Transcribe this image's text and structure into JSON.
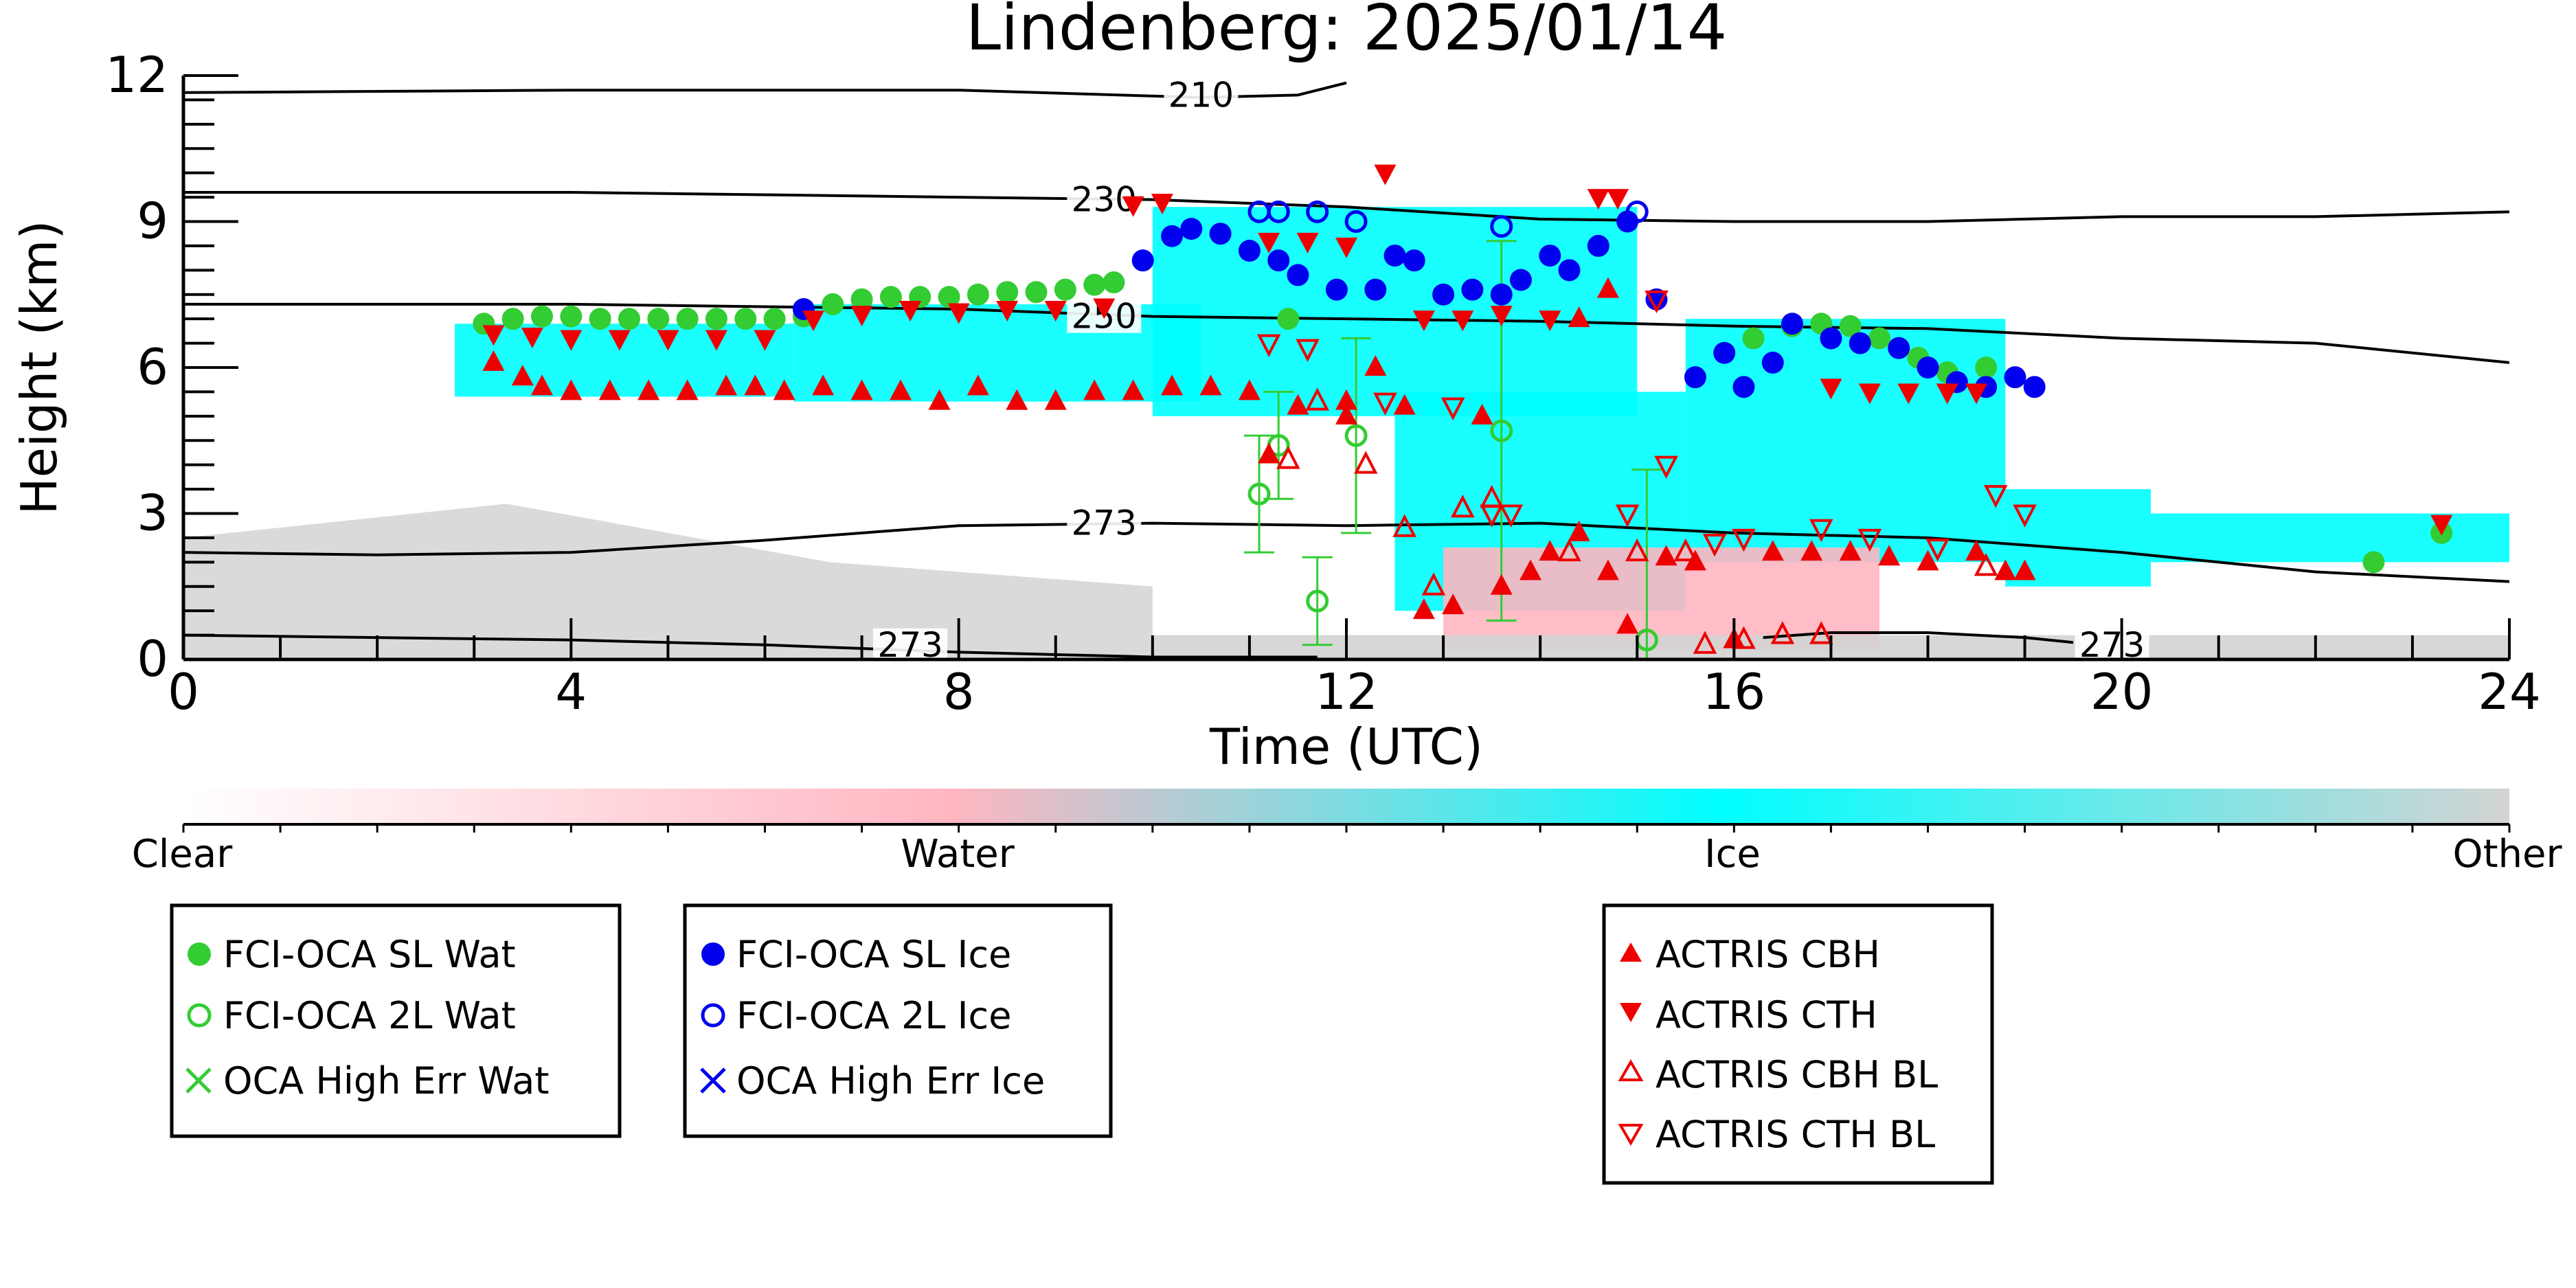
{
  "chart_data": {
    "type": "scatter",
    "title": "Lindenberg: 2025/01/14",
    "xlabel": "Time (UTC)",
    "ylabel": "Height (km)",
    "xlim": [
      0,
      24
    ],
    "ylim": [
      0,
      12
    ],
    "x_ticks": [
      0,
      4,
      8,
      12,
      16,
      20,
      24
    ],
    "y_ticks": [
      0,
      3,
      6,
      9,
      12
    ],
    "x_tick_labels": [
      "0",
      "4",
      "8",
      "12",
      "16",
      "20",
      "24"
    ],
    "y_tick_labels": [
      "0",
      "3",
      "6",
      "9",
      "12"
    ],
    "grid": false,
    "colorbar": {
      "labels": [
        "Clear",
        "Water",
        "Ice",
        "Other"
      ],
      "colors": [
        "#ffffff",
        "#ffb6c1",
        "#00ffff",
        "#d3d3d3"
      ]
    },
    "background_classification": [
      {
        "class": "Other",
        "x0": 0,
        "x1": 10,
        "ytop": [
          2.5,
          3.2,
          2.0,
          1.5
        ]
      },
      {
        "class": "Ice",
        "x0": 2.8,
        "x1": 6.3,
        "ymin": 5.4,
        "ymax": 6.9
      },
      {
        "class": "Ice",
        "x0": 6.3,
        "x1": 10.5,
        "ymin": 5.3,
        "ymax": 7.3
      },
      {
        "class": "Ice",
        "x0": 10,
        "x1": 15,
        "ymin": 5.0,
        "ymax": 9.3
      },
      {
        "class": "Ice",
        "x0": 12.5,
        "x1": 15.5,
        "ymin": 1.0,
        "ymax": 5.5
      },
      {
        "class": "Ice",
        "x0": 15.5,
        "x1": 18.8,
        "ymin": 2.0,
        "ymax": 7.0
      },
      {
        "class": "Ice",
        "x0": 18.8,
        "x1": 20.3,
        "ymin": 1.5,
        "ymax": 3.5
      },
      {
        "class": "Ice",
        "x0": 20.3,
        "x1": 24,
        "ymin": 2.0,
        "ymax": 3.0
      },
      {
        "class": "Water",
        "x0": 13,
        "x1": 17.5,
        "ymin": 0.2,
        "ymax": 2.3
      },
      {
        "class": "Other",
        "x0": 10,
        "x1": 24,
        "ymin": 0,
        "ymax": 0.5
      }
    ],
    "contours": [
      {
        "label": "210",
        "label_x": 10.5,
        "label_y": 11.6,
        "x": [
          0,
          4,
          8,
          10.5,
          11.5,
          12.0
        ],
        "y": [
          11.65,
          11.7,
          11.7,
          11.55,
          11.6,
          11.85
        ]
      },
      {
        "label": "230",
        "label_x": 9.5,
        "label_y": 9.45,
        "x": [
          0,
          4,
          8,
          10,
          12,
          14,
          16,
          18,
          20,
          22,
          24
        ],
        "y": [
          9.6,
          9.6,
          9.5,
          9.45,
          9.3,
          9.05,
          9.0,
          9.0,
          9.1,
          9.1,
          9.2
        ]
      },
      {
        "label": "250",
        "label_x": 9.5,
        "label_y": 7.05,
        "x": [
          0,
          4,
          8,
          10,
          12,
          14,
          16,
          18,
          20,
          22,
          24
        ],
        "y": [
          7.3,
          7.3,
          7.2,
          7.05,
          7.0,
          6.95,
          6.85,
          6.8,
          6.6,
          6.5,
          6.1
        ]
      },
      {
        "label": "273",
        "label_x": 9.5,
        "label_y": 2.8,
        "x": [
          0,
          2,
          4,
          6,
          8,
          10,
          12,
          14,
          16,
          18,
          20,
          22,
          24
        ],
        "y": [
          2.2,
          2.15,
          2.2,
          2.45,
          2.75,
          2.8,
          2.75,
          2.8,
          2.6,
          2.5,
          2.2,
          1.8,
          1.6
        ]
      },
      {
        "label": "273",
        "label_x": 7.5,
        "label_y": 0.3,
        "x": [
          0,
          2,
          4,
          6,
          8,
          10,
          11.7
        ],
        "y": [
          0.5,
          0.45,
          0.4,
          0.3,
          0.15,
          0.05,
          0.05
        ]
      },
      {
        "label": "273",
        "label_x": 19.9,
        "label_y": 0.3,
        "x": [
          16.3,
          17,
          18,
          19,
          19.5
        ],
        "y": [
          0.45,
          0.55,
          0.55,
          0.45,
          0.35
        ]
      }
    ],
    "series": [
      {
        "name": "FCI-OCA SL Wat",
        "color": "#33cc33",
        "marker": "filled-circle",
        "points": [
          [
            3.1,
            6.9
          ],
          [
            3.4,
            7.0
          ],
          [
            3.7,
            7.05
          ],
          [
            4.0,
            7.05
          ],
          [
            4.3,
            7.0
          ],
          [
            4.6,
            7.0
          ],
          [
            4.9,
            7.0
          ],
          [
            5.2,
            7.0
          ],
          [
            5.5,
            7.0
          ],
          [
            5.8,
            7.0
          ],
          [
            6.1,
            7.0
          ],
          [
            6.4,
            7.05
          ],
          [
            6.7,
            7.3
          ],
          [
            7.0,
            7.4
          ],
          [
            7.3,
            7.45
          ],
          [
            7.6,
            7.45
          ],
          [
            7.9,
            7.45
          ],
          [
            8.2,
            7.5
          ],
          [
            8.5,
            7.55
          ],
          [
            8.8,
            7.55
          ],
          [
            9.1,
            7.6
          ],
          [
            9.4,
            7.7
          ],
          [
            9.6,
            7.75
          ],
          [
            11.4,
            7.0
          ],
          [
            16.2,
            6.6
          ],
          [
            16.6,
            6.85
          ],
          [
            16.9,
            6.9
          ],
          [
            17.2,
            6.85
          ],
          [
            17.5,
            6.6
          ],
          [
            17.9,
            6.2
          ],
          [
            18.2,
            5.9
          ],
          [
            18.6,
            6.0
          ],
          [
            22.6,
            2.0
          ],
          [
            23.3,
            2.6
          ]
        ]
      },
      {
        "name": "FCI-OCA 2L Wat",
        "color": "#33cc33",
        "marker": "open-circle",
        "points": [
          [
            11.1,
            3.4
          ],
          [
            11.3,
            4.4
          ],
          [
            11.7,
            1.2
          ],
          [
            12.1,
            4.6
          ],
          [
            13.6,
            4.7
          ],
          [
            15.1,
            0.4
          ]
        ],
        "errors": [
          [
            11.1,
            2.2,
            4.6
          ],
          [
            11.3,
            3.3,
            5.5
          ],
          [
            11.7,
            0.3,
            2.1
          ],
          [
            12.1,
            2.6,
            6.6
          ],
          [
            13.6,
            0.8,
            8.6
          ],
          [
            15.1,
            0,
            3.9
          ]
        ]
      },
      {
        "name": "OCA High Err Wat",
        "color": "#33cc33",
        "marker": "x",
        "points": []
      },
      {
        "name": "FCI-OCA SL Ice",
        "color": "#0000ee",
        "marker": "filled-circle",
        "points": [
          [
            6.4,
            7.2
          ],
          [
            9.9,
            8.2
          ],
          [
            10.2,
            8.7
          ],
          [
            10.4,
            8.85
          ],
          [
            10.7,
            8.75
          ],
          [
            11.0,
            8.4
          ],
          [
            11.3,
            8.2
          ],
          [
            11.5,
            7.9
          ],
          [
            11.9,
            7.6
          ],
          [
            12.3,
            7.6
          ],
          [
            12.5,
            8.3
          ],
          [
            12.7,
            8.2
          ],
          [
            13.0,
            7.5
          ],
          [
            13.3,
            7.6
          ],
          [
            13.6,
            7.5
          ],
          [
            13.8,
            7.8
          ],
          [
            14.1,
            8.3
          ],
          [
            14.3,
            8.0
          ],
          [
            14.6,
            8.5
          ],
          [
            14.9,
            9.0
          ],
          [
            15.2,
            7.4
          ],
          [
            15.6,
            5.8
          ],
          [
            15.9,
            6.3
          ],
          [
            16.1,
            5.6
          ],
          [
            16.4,
            6.1
          ],
          [
            16.6,
            6.9
          ],
          [
            17.0,
            6.6
          ],
          [
            17.3,
            6.5
          ],
          [
            17.7,
            6.4
          ],
          [
            18.0,
            6.0
          ],
          [
            18.3,
            5.7
          ],
          [
            18.6,
            5.6
          ],
          [
            18.9,
            5.8
          ],
          [
            19.1,
            5.6
          ]
        ],
        "errors": []
      },
      {
        "name": "FCI-OCA 2L Ice",
        "color": "#0000ee",
        "marker": "open-circle",
        "points": [
          [
            11.1,
            9.2
          ],
          [
            11.3,
            9.2
          ],
          [
            11.7,
            9.2
          ],
          [
            12.1,
            9.0
          ],
          [
            13.6,
            8.9
          ],
          [
            15.0,
            9.2
          ]
        ]
      },
      {
        "name": "OCA High Err Ice",
        "color": "#0000ee",
        "marker": "x",
        "points": []
      },
      {
        "name": "ACTRIS CBH",
        "color": "#ee0000",
        "marker": "triangle-up",
        "points": [
          [
            3.2,
            6.1
          ],
          [
            3.5,
            5.8
          ],
          [
            3.7,
            5.6
          ],
          [
            4.0,
            5.5
          ],
          [
            4.4,
            5.5
          ],
          [
            4.8,
            5.5
          ],
          [
            5.2,
            5.5
          ],
          [
            5.6,
            5.6
          ],
          [
            5.9,
            5.6
          ],
          [
            6.2,
            5.5
          ],
          [
            6.6,
            5.6
          ],
          [
            7.0,
            5.5
          ],
          [
            7.4,
            5.5
          ],
          [
            7.8,
            5.3
          ],
          [
            8.2,
            5.6
          ],
          [
            8.6,
            5.3
          ],
          [
            9.0,
            5.3
          ],
          [
            9.4,
            5.5
          ],
          [
            9.8,
            5.5
          ],
          [
            10.2,
            5.6
          ],
          [
            10.6,
            5.6
          ],
          [
            11.0,
            5.5
          ],
          [
            11.2,
            4.2
          ],
          [
            11.5,
            5.2
          ],
          [
            12.0,
            5.3
          ],
          [
            12.3,
            6.0
          ],
          [
            12.6,
            5.2
          ],
          [
            12.8,
            1.0
          ],
          [
            13.1,
            1.1
          ],
          [
            13.4,
            5.0
          ],
          [
            13.6,
            1.5
          ],
          [
            13.9,
            1.8
          ],
          [
            14.1,
            2.2
          ],
          [
            14.4,
            2.6
          ],
          [
            14.7,
            1.8
          ],
          [
            14.9,
            0.7
          ],
          [
            15.3,
            2.1
          ],
          [
            15.6,
            2.0
          ],
          [
            16.0,
            0.4
          ],
          [
            16.4,
            2.2
          ],
          [
            16.8,
            2.2
          ],
          [
            17.2,
            2.2
          ],
          [
            17.6,
            2.1
          ],
          [
            18.0,
            2.0
          ],
          [
            18.5,
            2.2
          ],
          [
            18.8,
            1.8
          ],
          [
            19.0,
            1.8
          ],
          [
            12.0,
            5.0
          ],
          [
            14.4,
            7.0
          ],
          [
            14.7,
            7.6
          ]
        ]
      },
      {
        "name": "ACTRIS CTH",
        "color": "#ee0000",
        "marker": "triangle-down",
        "points": [
          [
            3.2,
            6.7
          ],
          [
            3.6,
            6.65
          ],
          [
            4.0,
            6.6
          ],
          [
            4.5,
            6.6
          ],
          [
            5.0,
            6.6
          ],
          [
            5.5,
            6.6
          ],
          [
            6.0,
            6.6
          ],
          [
            6.5,
            7.0
          ],
          [
            7.0,
            7.1
          ],
          [
            7.5,
            7.2
          ],
          [
            8.0,
            7.15
          ],
          [
            8.5,
            7.2
          ],
          [
            9.0,
            7.2
          ],
          [
            9.5,
            7.25
          ],
          [
            9.8,
            9.35
          ],
          [
            10.1,
            9.4
          ],
          [
            11.2,
            8.6
          ],
          [
            11.6,
            8.6
          ],
          [
            12.0,
            8.5
          ],
          [
            12.4,
            10.0
          ],
          [
            12.8,
            7.0
          ],
          [
            13.2,
            7.0
          ],
          [
            13.6,
            7.1
          ],
          [
            14.1,
            7.0
          ],
          [
            14.6,
            9.5
          ],
          [
            14.8,
            9.5
          ],
          [
            17.0,
            5.6
          ],
          [
            17.4,
            5.5
          ],
          [
            17.8,
            5.5
          ],
          [
            18.2,
            5.5
          ],
          [
            18.5,
            5.5
          ],
          [
            23.3,
            2.8
          ]
        ]
      },
      {
        "name": "ACTRIS CBH BL",
        "color": "#ee0000",
        "marker": "open-triangle-up",
        "points": [
          [
            11.4,
            4.1
          ],
          [
            11.7,
            5.3
          ],
          [
            12.2,
            4.0
          ],
          [
            12.6,
            2.7
          ],
          [
            12.9,
            1.5
          ],
          [
            13.2,
            3.1
          ],
          [
            13.5,
            3.3
          ],
          [
            14.3,
            2.2
          ],
          [
            15.0,
            2.2
          ],
          [
            15.5,
            2.2
          ],
          [
            15.7,
            0.3
          ],
          [
            16.1,
            0.4
          ],
          [
            16.5,
            0.5
          ],
          [
            16.9,
            0.5
          ],
          [
            18.6,
            1.9
          ]
        ]
      },
      {
        "name": "ACTRIS CTH BL",
        "color": "#ee0000",
        "marker": "open-triangle-down",
        "points": [
          [
            11.2,
            6.5
          ],
          [
            11.6,
            6.4
          ],
          [
            12.4,
            5.3
          ],
          [
            13.1,
            5.2
          ],
          [
            13.5,
            3.0
          ],
          [
            13.7,
            3.0
          ],
          [
            14.9,
            3.0
          ],
          [
            15.2,
            7.4
          ],
          [
            15.3,
            4.0
          ],
          [
            15.8,
            2.4
          ],
          [
            16.1,
            2.5
          ],
          [
            16.9,
            2.7
          ],
          [
            17.4,
            2.5
          ],
          [
            18.1,
            2.3
          ],
          [
            18.7,
            3.4
          ],
          [
            19.0,
            3.0
          ]
        ]
      }
    ],
    "legend": [
      [
        "FCI-OCA SL Wat",
        "FCI-OCA 2L Wat",
        "OCA High Err Wat"
      ],
      [
        "FCI-OCA SL Ice",
        "FCI-OCA 2L Ice",
        "OCA High Err Ice"
      ],
      [
        "ACTRIS CBH",
        "ACTRIS CTH",
        "ACTRIS CBH BL",
        "ACTRIS CTH BL"
      ]
    ]
  }
}
